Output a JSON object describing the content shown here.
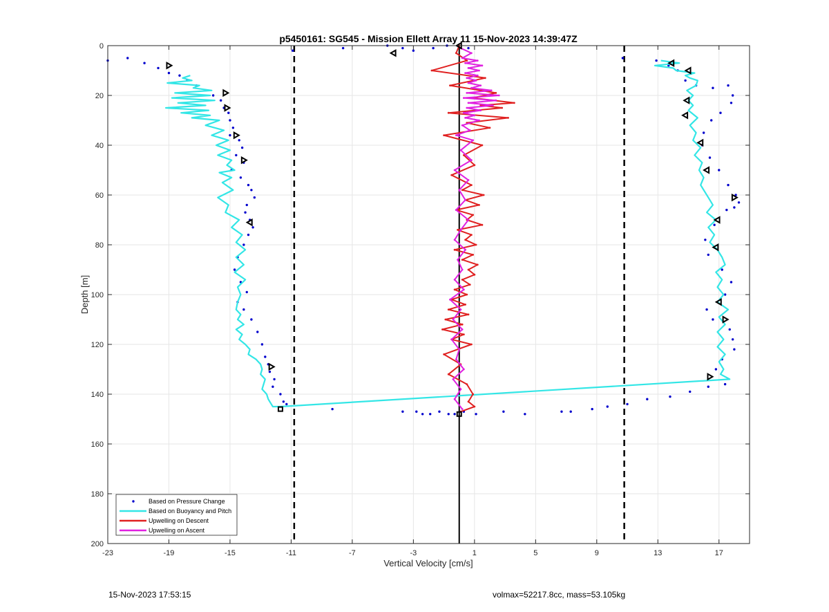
{
  "chart_data": {
    "type": "line",
    "title": "p5450161: SG545 - Mission Ellett Array 11 15-Nov-2023 14:39:47Z",
    "xlabel": "Vertical Velocity [cm/s]",
    "ylabel": "Depth [m]",
    "xlim": [
      -23,
      19
    ],
    "ylim": [
      0,
      200
    ],
    "y_reversed": true,
    "grid": true,
    "x_ticks": [
      -23,
      -19,
      -15,
      -11,
      -7,
      -3,
      1,
      5,
      9,
      13,
      17
    ],
    "y_ticks": [
      0,
      20,
      40,
      60,
      80,
      100,
      120,
      140,
      160,
      180,
      200
    ],
    "legend_position": "bottom-left",
    "reference_lines": [
      {
        "x": -10.8,
        "style": "dashed",
        "color": "#000000"
      },
      {
        "x": 10.8,
        "style": "dashed",
        "color": "#000000"
      },
      {
        "x": 0.0,
        "style": "solid",
        "color": "#000000"
      }
    ],
    "series": [
      {
        "name": "Based on Pressure Change",
        "style": "dots",
        "color": "#0000cd",
        "x": [
          -23.0,
          -21.7,
          -20.6,
          -19.7,
          -19.0,
          -18.3,
          -17.8,
          -17.2,
          -16.6,
          -16.1,
          -15.6,
          -15.4,
          -15.1,
          -15.0,
          -14.8,
          -15.0,
          -14.4,
          -14.2,
          -14.6,
          -14.1,
          -14.9,
          -14.3,
          -13.8,
          -13.6,
          -13.4,
          -13.9,
          -14.0,
          -13.7,
          -13.5,
          -13.8,
          -14.1,
          -14.5,
          -14.7,
          -14.3,
          -13.9,
          -14.5,
          -14.1,
          -13.6,
          -13.2,
          -12.9,
          -12.7,
          -12.5,
          -12.4,
          -12.1,
          -12.2,
          -11.7,
          -11.5,
          -11.3,
          -8.3,
          -3.7,
          -2.8,
          -2.4,
          -1.9,
          -1.3,
          -0.7,
          -0.3,
          0.3,
          1.1,
          2.9,
          4.3,
          6.7,
          7.3,
          8.7,
          9.7,
          11.0,
          12.3,
          13.8,
          15.1,
          16.3,
          17.4,
          -7.6,
          -4.7,
          -3.7,
          -3.0,
          -1.7,
          -0.8,
          0.6,
          -10.9,
          10.7,
          12.9,
          13.7,
          14.3,
          14.8,
          15.5,
          16.6,
          17.6,
          17.9,
          17.8,
          17.1,
          16.5,
          16.0,
          15.9,
          16.4,
          17.0,
          17.6,
          18.1,
          18.3,
          18.0,
          17.5,
          16.7,
          16.1,
          16.3,
          17.2,
          17.8,
          17.4,
          16.2,
          16.6,
          17.7,
          17.9,
          18.0,
          17.2,
          16.8
        ],
        "y": [
          6,
          5,
          7,
          9,
          11,
          12,
          14,
          16,
          18,
          20,
          22,
          25,
          27,
          30,
          33,
          36,
          38,
          41,
          44,
          47,
          50,
          53,
          56,
          58,
          61,
          64,
          67,
          70,
          73,
          76,
          80,
          85,
          90,
          95,
          99,
          103,
          106,
          110,
          115,
          120,
          125,
          128,
          131,
          134,
          137,
          140,
          143,
          144,
          146,
          147,
          147,
          148,
          148,
          147,
          148,
          148,
          147,
          148,
          147,
          148,
          147,
          147,
          146,
          145,
          144,
          142,
          141,
          139,
          137,
          136,
          1,
          0,
          1,
          2,
          1,
          0,
          1,
          2,
          5,
          6,
          8,
          10,
          14,
          16,
          17,
          16,
          20,
          23,
          27,
          30,
          35,
          40,
          45,
          50,
          56,
          60,
          63,
          65,
          66,
          72,
          78,
          84,
          90,
          95,
          100,
          106,
          110,
          114,
          118,
          122,
          126,
          130
        ]
      },
      {
        "name": "Based on Buoyancy and Pitch",
        "style": "line",
        "color": "#33e6e6",
        "x": [
          -17.6,
          -18.1,
          -17.5,
          -19.1,
          -17.0,
          -17.4,
          -16.2,
          -18.6,
          -16.3,
          -18.8,
          -16.0,
          -18.4,
          -16.6,
          -19.2,
          -16.4,
          -18.2,
          -16.3,
          -17.5,
          -15.7,
          -16.6,
          -15.4,
          -16.2,
          -15.1,
          -15.9,
          -15.0,
          -15.8,
          -14.9,
          -15.2,
          -14.7,
          -15.7,
          -14.9,
          -15.5,
          -14.8,
          -15.8,
          -15.1,
          -15.3,
          -14.4,
          -14.9,
          -14.2,
          -14.6,
          -14.0,
          -14.6,
          -14.1,
          -14.7,
          -14.0,
          -14.5,
          -14.3,
          -14.5,
          -14.6,
          -14.3,
          -14.5,
          -14.1,
          -14.6,
          -14.2,
          -14.4,
          -14.0,
          -13.7,
          -13.8,
          -13.3,
          -13.0,
          -12.9,
          -13.0,
          -12.7,
          -12.8,
          -12.9,
          -12.6,
          -12.5,
          -12.4,
          -12.3,
          -12.2,
          -11.7,
          17.7,
          17.1,
          17.3,
          17.0,
          17.4,
          16.9,
          17.3,
          16.9,
          17.4,
          17.0,
          17.6,
          16.9,
          17.3,
          16.9,
          17.2,
          16.8,
          17.4,
          17.2,
          16.9,
          16.4,
          16.7,
          16.3,
          16.8,
          16.2,
          16.6,
          16.3,
          16.1,
          15.8,
          16.0,
          15.7,
          15.9,
          15.4,
          15.8,
          15.3,
          15.5,
          15.1,
          15.6,
          15.0,
          15.3,
          15.0,
          15.3,
          14.9,
          15.5,
          15.6,
          15.1,
          14.8,
          15.4,
          14.2,
          14.0,
          12.8,
          14.4,
          13.2
        ],
        "y": [
          12,
          13,
          14,
          15,
          16,
          17,
          18,
          19,
          20,
          21,
          22,
          23,
          24,
          25,
          26,
          27,
          28,
          29,
          30,
          32,
          34,
          36,
          38,
          40,
          42,
          44,
          46,
          48,
          50,
          51,
          53,
          55,
          58,
          61,
          64,
          67,
          70,
          73,
          76,
          79,
          82,
          85,
          88,
          91,
          94,
          97,
          100,
          103,
          106,
          108,
          110,
          112,
          114,
          116,
          118,
          120,
          122,
          124,
          126,
          128,
          130,
          132,
          134,
          136,
          138,
          140,
          142,
          143,
          144,
          145,
          145,
          134,
          132,
          130,
          127,
          124,
          121,
          118,
          115,
          112,
          109,
          106,
          103,
          100,
          97,
          94,
          91,
          88,
          85,
          82,
          79,
          76,
          73,
          70,
          67,
          64,
          61,
          59,
          56,
          53,
          50,
          47,
          44,
          41,
          38,
          35,
          32,
          29,
          26,
          24,
          22,
          20,
          18,
          16,
          14,
          13,
          12,
          11,
          10,
          9,
          8,
          7,
          6
        ]
      },
      {
        "name": "Upwelling on Descent",
        "style": "line",
        "color": "#e02020",
        "x": [
          0,
          -0.2,
          0.5,
          -1.8,
          1.7,
          -0.6,
          2.4,
          0.9,
          3.6,
          1.4,
          2.8,
          -0.7,
          3.2,
          0.5,
          2.0,
          -1.0,
          1.5,
          0.3,
          1.0,
          -0.5,
          0.8,
          0.2,
          1.6,
          0.4,
          1.3,
          -0.2,
          0.9,
          0.5,
          1.5,
          -0.1,
          0.8,
          0.4,
          1.1,
          -0.3,
          0.9,
          0.2,
          1.2,
          0.6,
          1.0,
          0.2,
          0.7,
          -0.3,
          0.5,
          -0.5,
          0.4,
          -0.7,
          0.6,
          -0.9,
          0.2,
          -1.1,
          0.3,
          -0.5,
          0.8,
          -1.0,
          0.1,
          -0.7,
          0.5,
          0.9,
          0.6,
          1.0,
          0.1
        ],
        "y": [
          0,
          3,
          6,
          10,
          13,
          16,
          19,
          21,
          23,
          24,
          25,
          27,
          29,
          31,
          33,
          36,
          40,
          44,
          48,
          52,
          56,
          58,
          60,
          62,
          64,
          66,
          68,
          70,
          72,
          74,
          76,
          78,
          80,
          82,
          84,
          86,
          88,
          90,
          92,
          94,
          96,
          98,
          100,
          102,
          104,
          106,
          108,
          110,
          112,
          114,
          116,
          118,
          120,
          124,
          128,
          132,
          136,
          140,
          143,
          145,
          147
        ]
      },
      {
        "name": "Upwelling on Ascent",
        "style": "line",
        "color": "#e020e0",
        "x": [
          0.2,
          -0.3,
          0.1,
          -0.4,
          0.3,
          -0.2,
          0.0,
          -0.5,
          0.2,
          -0.4,
          0.1,
          -0.6,
          0.3,
          -0.3,
          0.2,
          -0.1,
          0.4,
          -0.3,
          0.1,
          0.6,
          -0.2,
          0.4,
          0.0,
          0.6,
          -0.3,
          0.8,
          0.1,
          0.9,
          -0.2,
          0.7,
          0.2,
          1.3,
          0.4,
          1.0,
          0.3,
          1.4,
          0.5,
          2.2,
          0.6,
          2.4,
          0.3,
          2.6,
          0.5,
          2.1,
          0.8,
          1.4,
          0.6,
          1.1,
          0.5,
          1.2,
          0.4,
          1.3,
          0.6,
          1.5,
          0.4,
          1.2,
          0.2,
          0.8,
          0.1
        ],
        "y": [
          146,
          142,
          138,
          134,
          130,
          126,
          122,
          118,
          114,
          110,
          106,
          102,
          98,
          94,
          90,
          86,
          82,
          78,
          74,
          70,
          66,
          62,
          58,
          54,
          50,
          46,
          42,
          38,
          36,
          34,
          32,
          30,
          29,
          28,
          27,
          26,
          25,
          24,
          23,
          22,
          21,
          20,
          19,
          18,
          17,
          16,
          15,
          14,
          13,
          12,
          11,
          10,
          9,
          8,
          7,
          6,
          5,
          3,
          1
        ]
      }
    ],
    "markers": {
      "color": "#000000",
      "points": [
        {
          "x": -19.0,
          "y": 8,
          "shape": "triangle-right"
        },
        {
          "x": -15.3,
          "y": 19,
          "shape": "triangle-right"
        },
        {
          "x": -15.2,
          "y": 25,
          "shape": "triangle-right"
        },
        {
          "x": -14.6,
          "y": 36,
          "shape": "triangle-right"
        },
        {
          "x": -14.1,
          "y": 46,
          "shape": "triangle-right"
        },
        {
          "x": -13.7,
          "y": 71,
          "shape": "triangle-left"
        },
        {
          "x": -12.3,
          "y": 129,
          "shape": "triangle-right"
        },
        {
          "x": -11.7,
          "y": 146,
          "shape": "square"
        },
        {
          "x": -4.3,
          "y": 3,
          "shape": "triangle-left"
        },
        {
          "x": 0.0,
          "y": 0,
          "shape": "triangle-left"
        },
        {
          "x": 0.0,
          "y": 148,
          "shape": "square"
        },
        {
          "x": 13.9,
          "y": 7,
          "shape": "triangle-left"
        },
        {
          "x": 15.0,
          "y": 10,
          "shape": "triangle-left"
        },
        {
          "x": 14.9,
          "y": 22,
          "shape": "triangle-left"
        },
        {
          "x": 14.8,
          "y": 28,
          "shape": "triangle-left"
        },
        {
          "x": 15.8,
          "y": 39,
          "shape": "triangle-left"
        },
        {
          "x": 16.2,
          "y": 50,
          "shape": "triangle-left"
        },
        {
          "x": 18.0,
          "y": 61,
          "shape": "triangle-right"
        },
        {
          "x": 16.9,
          "y": 70,
          "shape": "triangle-left"
        },
        {
          "x": 16.8,
          "y": 81,
          "shape": "triangle-left"
        },
        {
          "x": 17.0,
          "y": 103,
          "shape": "triangle-left"
        },
        {
          "x": 17.4,
          "y": 110,
          "shape": "triangle-right"
        },
        {
          "x": 16.4,
          "y": 133,
          "shape": "triangle-right"
        }
      ]
    }
  },
  "footer": {
    "timestamp": "15-Nov-2023 17:53:15",
    "stats": "volmax=52217.8cc, mass=53.105kg"
  }
}
